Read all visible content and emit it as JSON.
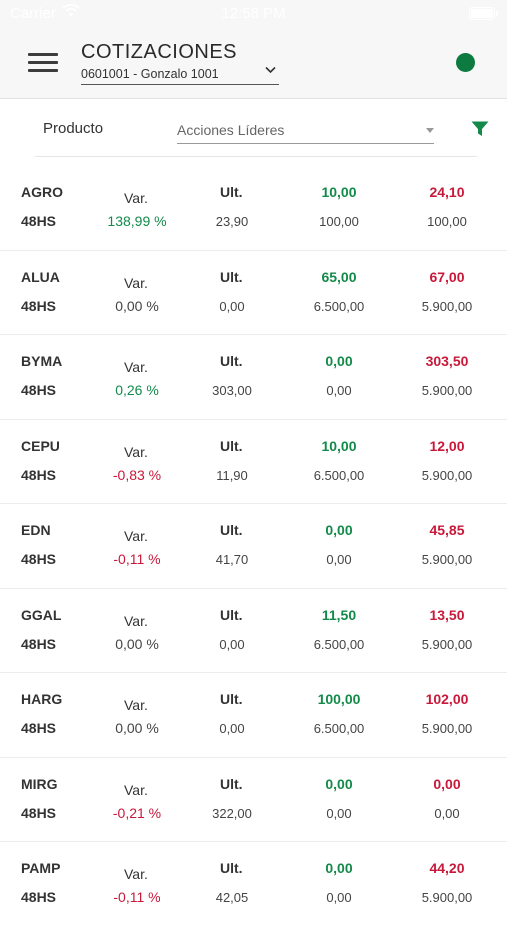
{
  "status_bar": {
    "carrier": "Carrier",
    "time": "12:58 PM"
  },
  "header": {
    "title": "COTIZACIONES",
    "account": "0601001 - Gonzalo 1001",
    "connection_color": "#0d7a3f"
  },
  "filter": {
    "label": "Producto",
    "selected": "Acciones Líderes"
  },
  "quotes": [
    {
      "ticker": "AGRO",
      "term": "48HS",
      "var_label": "Var.",
      "var": "138,99 %",
      "trend": "pos",
      "ult_label": "Ult.",
      "ult": "23,90",
      "bid": "10,00",
      "bid_qty": "100,00",
      "ask": "24,10",
      "ask_qty": "100,00"
    },
    {
      "ticker": "ALUA",
      "term": "48HS",
      "var_label": "Var.",
      "var": "0,00 %",
      "trend": "neu",
      "ult_label": "Ult.",
      "ult": "0,00",
      "bid": "65,00",
      "bid_qty": "6.500,00",
      "ask": "67,00",
      "ask_qty": "5.900,00"
    },
    {
      "ticker": "BYMA",
      "term": "48HS",
      "var_label": "Var.",
      "var": "0,26 %",
      "trend": "pos",
      "ult_label": "Ult.",
      "ult": "303,00",
      "bid": "0,00",
      "bid_qty": "0,00",
      "ask": "303,50",
      "ask_qty": "5.900,00"
    },
    {
      "ticker": "CEPU",
      "term": "48HS",
      "var_label": "Var.",
      "var": "-0,83 %",
      "trend": "neg",
      "ult_label": "Ult.",
      "ult": "11,90",
      "bid": "10,00",
      "bid_qty": "6.500,00",
      "ask": "12,00",
      "ask_qty": "5.900,00"
    },
    {
      "ticker": "EDN",
      "term": "48HS",
      "var_label": "Var.",
      "var": "-0,11 %",
      "trend": "neg",
      "ult_label": "Ult.",
      "ult": "41,70",
      "bid": "0,00",
      "bid_qty": "0,00",
      "ask": "45,85",
      "ask_qty": "5.900,00"
    },
    {
      "ticker": "GGAL",
      "term": "48HS",
      "var_label": "Var.",
      "var": "0,00 %",
      "trend": "neu",
      "ult_label": "Ult.",
      "ult": "0,00",
      "bid": "11,50",
      "bid_qty": "6.500,00",
      "ask": "13,50",
      "ask_qty": "5.900,00"
    },
    {
      "ticker": "HARG",
      "term": "48HS",
      "var_label": "Var.",
      "var": "0,00 %",
      "trend": "neu",
      "ult_label": "Ult.",
      "ult": "0,00",
      "bid": "100,00",
      "bid_qty": "6.500,00",
      "ask": "102,00",
      "ask_qty": "5.900,00"
    },
    {
      "ticker": "MIRG",
      "term": "48HS",
      "var_label": "Var.",
      "var": "-0,21 %",
      "trend": "neg",
      "ult_label": "Ult.",
      "ult": "322,00",
      "bid": "0,00",
      "bid_qty": "0,00",
      "ask": "0,00",
      "ask_qty": "0,00"
    },
    {
      "ticker": "PAMP",
      "term": "48HS",
      "var_label": "Var.",
      "var": "-0,11 %",
      "trend": "neg",
      "ult_label": "Ult.",
      "ult": "42,05",
      "bid": "0,00",
      "bid_qty": "0,00",
      "ask": "44,20",
      "ask_qty": "5.900,00"
    }
  ]
}
